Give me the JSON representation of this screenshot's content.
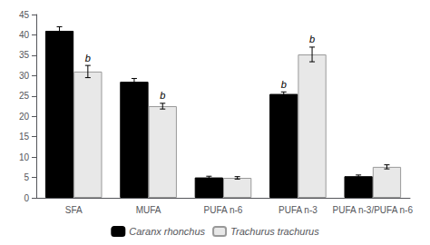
{
  "chart_data": {
    "type": "bar",
    "categories": [
      "SFA",
      "MUFA",
      "PUFA n-6",
      "PUFA n-3",
      "PUFA n-3/PUFA n-6"
    ],
    "series": [
      {
        "name": "Caranx rhonchus",
        "color": "#000000",
        "values": [
          41.0,
          28.5,
          5.0,
          25.5,
          5.3
        ],
        "errors": [
          1.0,
          0.8,
          0.3,
          0.5,
          0.3
        ],
        "annotations": [
          null,
          null,
          null,
          "b",
          null
        ]
      },
      {
        "name": "Trachurus trachurus",
        "color": "#e8e8e8",
        "values": [
          31.0,
          22.5,
          4.9,
          35.2,
          7.6
        ],
        "errors": [
          1.5,
          0.7,
          0.3,
          1.8,
          0.5
        ],
        "annotations": [
          "b",
          "b",
          null,
          "b",
          null
        ]
      }
    ],
    "ylim": [
      0,
      45
    ],
    "yticks": [
      0,
      5,
      10,
      15,
      20,
      25,
      30,
      35,
      40,
      45
    ],
    "grid": false,
    "legend": "bottom"
  }
}
